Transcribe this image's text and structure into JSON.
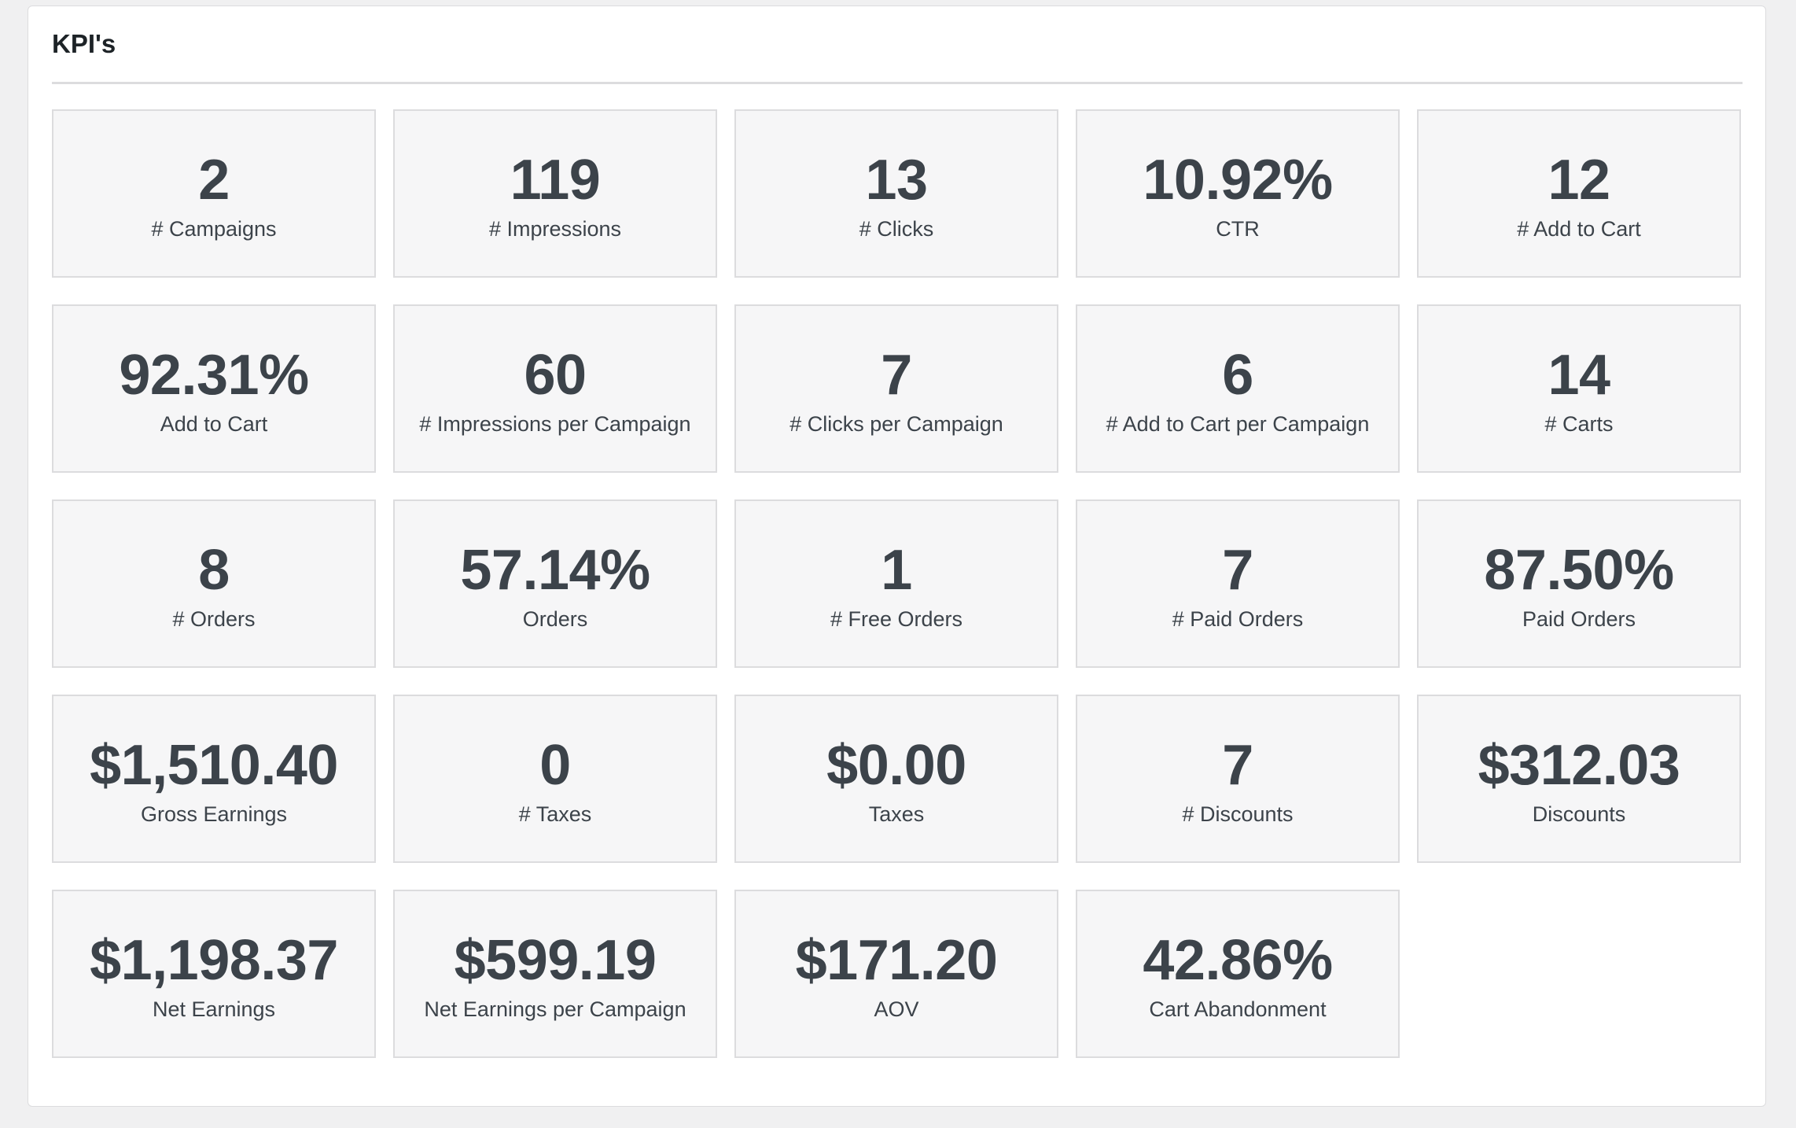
{
  "panel": {
    "title": "KPI's"
  },
  "kpis": [
    {
      "value": "2",
      "label": "# Campaigns"
    },
    {
      "value": "119",
      "label": "# Impressions"
    },
    {
      "value": "13",
      "label": "# Clicks"
    },
    {
      "value": "10.92%",
      "label": "CTR"
    },
    {
      "value": "12",
      "label": "# Add to Cart"
    },
    {
      "value": "92.31%",
      "label": "Add to Cart"
    },
    {
      "value": "60",
      "label": "# Impressions per Campaign"
    },
    {
      "value": "7",
      "label": "# Clicks per Campaign"
    },
    {
      "value": "6",
      "label": "# Add to Cart per Campaign"
    },
    {
      "value": "14",
      "label": "# Carts"
    },
    {
      "value": "8",
      "label": "# Orders"
    },
    {
      "value": "57.14%",
      "label": "Orders"
    },
    {
      "value": "1",
      "label": "# Free Orders"
    },
    {
      "value": "7",
      "label": "# Paid Orders"
    },
    {
      "value": "87.50%",
      "label": "Paid Orders"
    },
    {
      "value": "$1,510.40",
      "label": "Gross Earnings"
    },
    {
      "value": "0",
      "label": "# Taxes"
    },
    {
      "value": "$0.00",
      "label": "Taxes"
    },
    {
      "value": "7",
      "label": "# Discounts"
    },
    {
      "value": "$312.03",
      "label": "Discounts"
    },
    {
      "value": "$1,198.37",
      "label": "Net Earnings"
    },
    {
      "value": "$599.19",
      "label": "Net Earnings per Campaign"
    },
    {
      "value": "$171.20",
      "label": "AOV"
    },
    {
      "value": "42.86%",
      "label": "Cart Abandonment"
    }
  ]
}
